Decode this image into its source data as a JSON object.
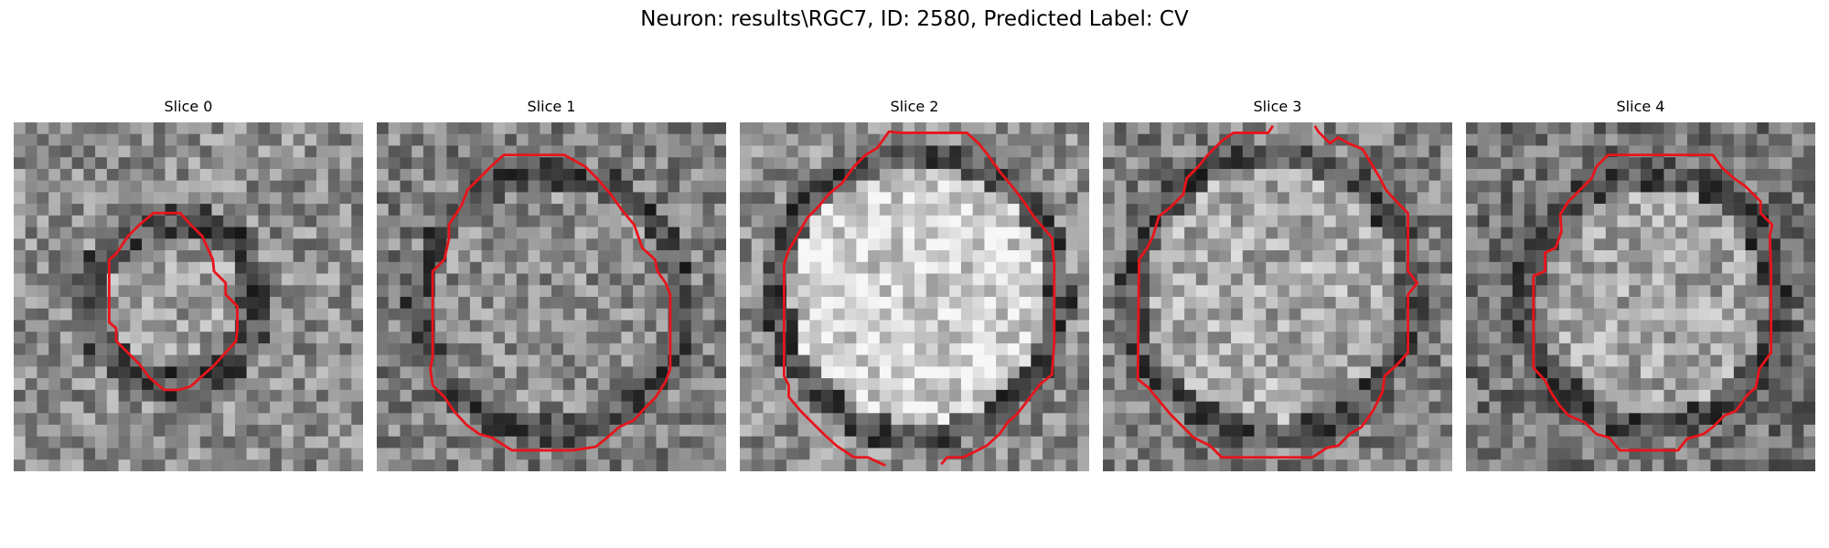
{
  "title": "Neuron: results\\RGC7, ID: 2580, Predicted Label: CV",
  "panels": [
    {
      "label": "Slice 0"
    },
    {
      "label": "Slice 1"
    },
    {
      "label": "Slice 2"
    },
    {
      "label": "Slice 3"
    },
    {
      "label": "Slice 4"
    }
  ],
  "colors": {
    "contour": "#e8141b",
    "background": "#ffffff"
  }
}
